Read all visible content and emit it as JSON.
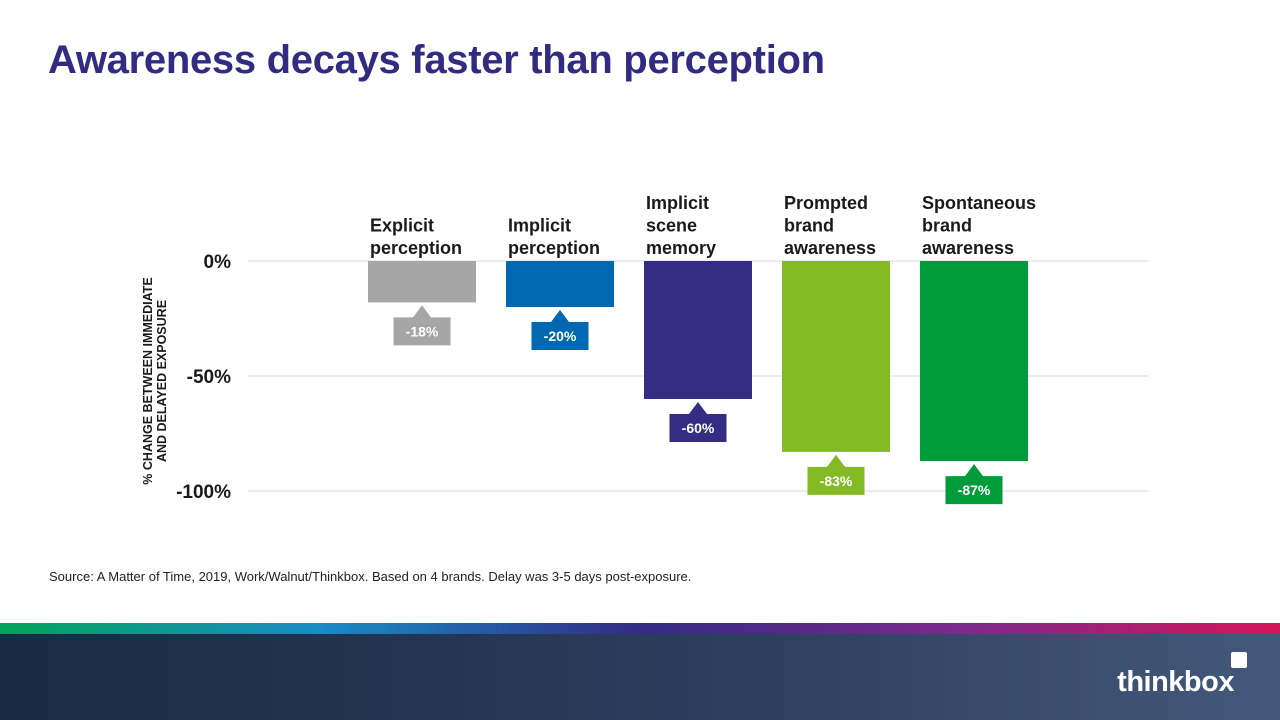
{
  "slide": {
    "title": "Awareness decays faster than perception",
    "source": "Source: A Matter of Time, 2019, Work/Walnut/Thinkbox. Based on 4 brands. Delay was 3-5 days post-exposure.",
    "logo_text": "thinkbox"
  },
  "colors": {
    "title": "#322b82",
    "stripe": [
      "#00a45a",
      "#1a8cc6",
      "#322b82",
      "#7a2a8c",
      "#d4145a"
    ]
  },
  "chart_data": {
    "type": "bar",
    "ylabel": [
      "% CHANGE BETWEEN IMMEDIATE",
      "AND DELAYED EXPOSURE"
    ],
    "ylim": [
      -100,
      0
    ],
    "yticks": [
      {
        "value": 0,
        "label": "0%"
      },
      {
        "value": -50,
        "label": "-50%"
      },
      {
        "value": -100,
        "label": "-100%"
      }
    ],
    "grid": true,
    "categories": [
      [
        "Explicit",
        "perception"
      ],
      [
        "Implicit",
        "perception"
      ],
      [
        "Implicit",
        "scene",
        "memory"
      ],
      [
        "Prompted",
        "brand",
        "awareness"
      ],
      [
        "Spontaneous",
        "brand",
        "awareness"
      ]
    ],
    "values": [
      -18,
      -20,
      -60,
      -83,
      -87
    ],
    "value_labels": [
      "-18%",
      "-20%",
      "-60%",
      "-83%",
      "-87%"
    ],
    "bar_colors": [
      "#a6a6a6",
      "#0067b1",
      "#352c84",
      "#84bb25",
      "#009b3a"
    ]
  }
}
